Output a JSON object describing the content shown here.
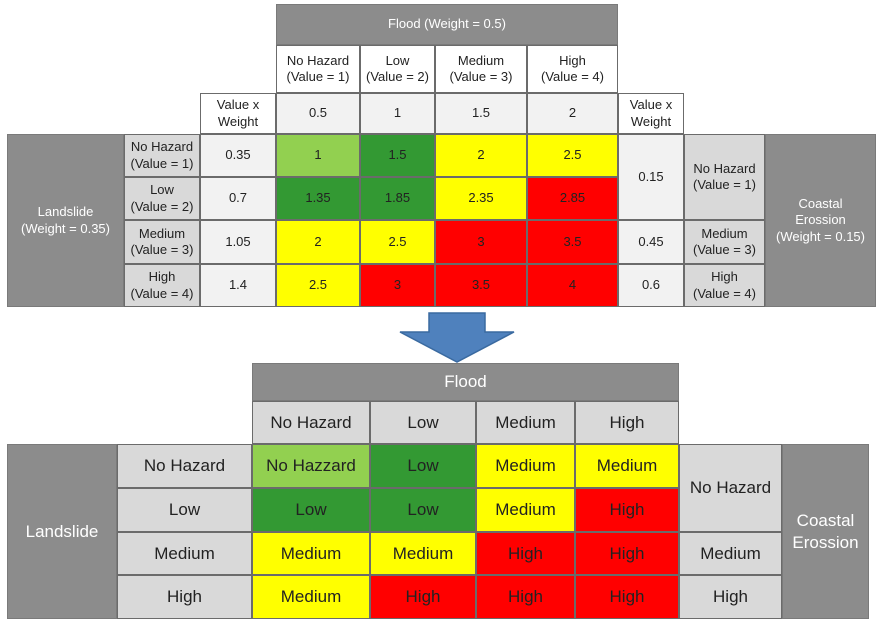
{
  "colors": {
    "light_green": "#92d050",
    "dark_green": "#339933",
    "yellow": "#ffff00",
    "red": "#ff0000",
    "header_dark": "#8c8c8c",
    "header_light": "#d9d9d9",
    "arrow": "#4f81bd"
  },
  "top": {
    "flood_header": "Flood (Weight = 0.5)",
    "flood_cols": [
      "No Hazard\n(Value = 1)",
      "Low\n(Value = 2)",
      "Medium\n(Value = 3)",
      "High\n(Value = 4)"
    ],
    "vxw_label": "Value x\nWeight",
    "flood_weights": [
      "0.5",
      "1",
      "1.5",
      "2"
    ],
    "vxw_label_right": "Value x\nWeight",
    "landslide_label": "Landslide\n(Weight = 0.35)",
    "landslide_rows": [
      "No Hazard\n(Value = 1)",
      "Low\n(Value = 2)",
      "Medium\n(Value = 3)",
      "High\n(Value = 4)"
    ],
    "landslide_weights": [
      "0.35",
      "0.7",
      "1.05",
      "1.4"
    ],
    "values": [
      [
        "1",
        "1.5",
        "2",
        "2.5"
      ],
      [
        "1.35",
        "1.85",
        "2.35",
        "2.85"
      ],
      [
        "2",
        "2.5",
        "3",
        "3.5"
      ],
      [
        "2.5",
        "3",
        "3.5",
        "4"
      ]
    ],
    "coastal_weights": [
      "0.15",
      "0.45",
      "0.6"
    ],
    "coastal_rows": [
      "No Hazard\n(Value = 1)",
      "Medium\n(Value = 3)",
      "High\n(Value = 4)"
    ],
    "coastal_label": "Coastal\nErossion\n(Weight = 0.15)"
  },
  "bottom": {
    "flood_header": "Flood",
    "flood_cols": [
      "No Hazard",
      "Low",
      "Medium",
      "High"
    ],
    "landslide_label": "Landslide",
    "landslide_rows": [
      "No Hazard",
      "Low",
      "Medium",
      "High"
    ],
    "values": [
      [
        "No Hazzard",
        "Low",
        "Medium",
        "Medium"
      ],
      [
        "Low",
        "Low",
        "Medium",
        "High"
      ],
      [
        "Medium",
        "Medium",
        "High",
        "High"
      ],
      [
        "Medium",
        "High",
        "High",
        "High"
      ]
    ],
    "coastal_rows": [
      "No Hazard",
      "Medium",
      "High"
    ],
    "coastal_label": "Coastal\nErossion"
  }
}
